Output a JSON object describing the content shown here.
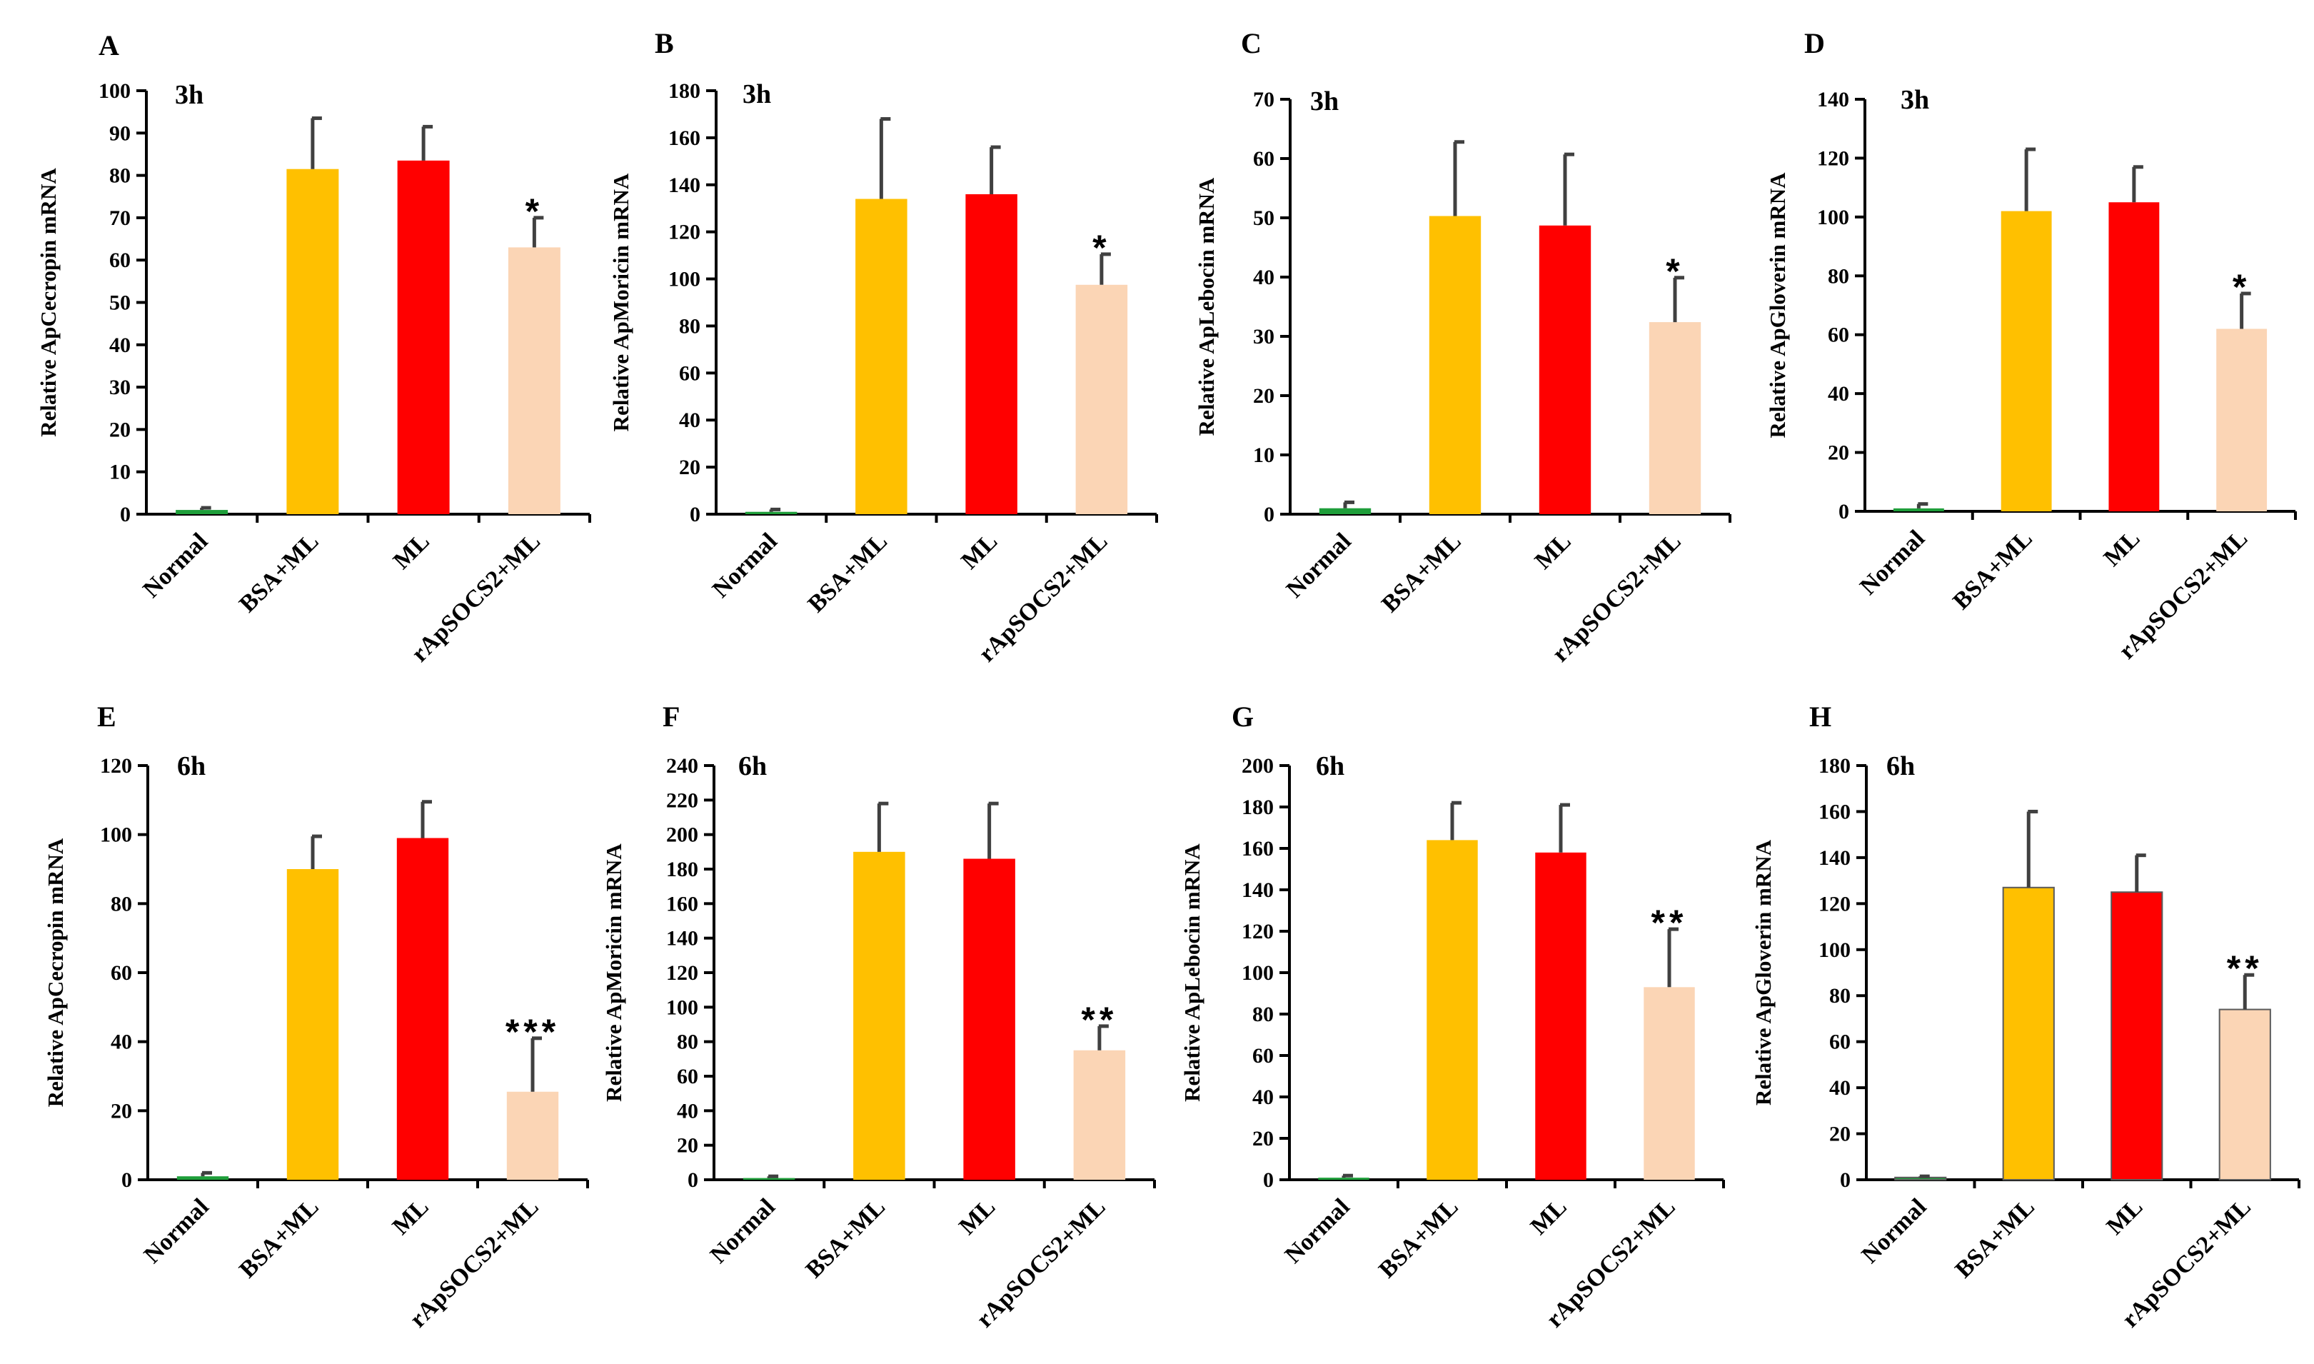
{
  "colors": {
    "Normal": "#1e9e3a",
    "BSA+ML": "#ffc000",
    "ML": "#ff0000",
    "rApSOCS2+ML": "#fbd5b5",
    "errorbar": "#404040",
    "axis": "#000000"
  },
  "chart_data": [
    {
      "panel": "A",
      "type": "bar",
      "time": "3h",
      "ylabel": "Relative ApCecropin  mRNA",
      "categories": [
        "Normal",
        "BSA+ML",
        "ML",
        "rApSOCS2+ML"
      ],
      "values": [
        1,
        81.5,
        83.5,
        63
      ],
      "errors": [
        0.5,
        12,
        8,
        7
      ],
      "significance": [
        "",
        "",
        "",
        "*"
      ],
      "ylim": [
        0,
        100
      ],
      "yticks": [
        0,
        10,
        20,
        30,
        40,
        50,
        60,
        70,
        80,
        90,
        100
      ]
    },
    {
      "panel": "B",
      "type": "bar",
      "time": "3h",
      "ylabel": "Relative ApMoricin  mRNA",
      "categories": [
        "Normal",
        "BSA+ML",
        "ML",
        "rApSOCS2+ML"
      ],
      "values": [
        1,
        134,
        136,
        97.5
      ],
      "errors": [
        1,
        34,
        20,
        13
      ],
      "significance": [
        "",
        "",
        "",
        "*"
      ],
      "ylim": [
        0,
        180
      ],
      "yticks": [
        0,
        20,
        40,
        60,
        80,
        100,
        120,
        140,
        160,
        180
      ]
    },
    {
      "panel": "C",
      "type": "bar",
      "time": "3h",
      "ylabel": "Relative ApLebocin  mRNA",
      "categories": [
        "Normal",
        "BSA+ML",
        "ML",
        "rApSOCS2+ML"
      ],
      "values": [
        1,
        50.3,
        48.7,
        32.4
      ],
      "errors": [
        1,
        12.5,
        12,
        7.5
      ],
      "significance": [
        "",
        "",
        "",
        "*"
      ],
      "ylim": [
        0,
        70
      ],
      "yticks": [
        0,
        10,
        20,
        30,
        40,
        50,
        60,
        70
      ]
    },
    {
      "panel": "D",
      "type": "bar",
      "time": "3h",
      "ylabel": "Relative ApGloverin  mRNA",
      "categories": [
        "Normal",
        "BSA+ML",
        "ML",
        "rApSOCS2+ML"
      ],
      "values": [
        1,
        102,
        105,
        62
      ],
      "errors": [
        1.5,
        21,
        12,
        12
      ],
      "significance": [
        "",
        "",
        "",
        "*"
      ],
      "ylim": [
        0,
        140
      ],
      "yticks": [
        0,
        20,
        40,
        60,
        80,
        100,
        120,
        140
      ]
    },
    {
      "panel": "E",
      "type": "bar",
      "time": "6h",
      "ylabel": "Relative ApCecropin  mRNA",
      "categories": [
        "Normal",
        "BSA+ML",
        "ML",
        "rApSOCS2+ML"
      ],
      "values": [
        1,
        90,
        99,
        25.5
      ],
      "errors": [
        1,
        9.5,
        10.5,
        15.5
      ],
      "significance": [
        "",
        "",
        "",
        "***"
      ],
      "ylim": [
        0,
        120
      ],
      "yticks": [
        0,
        20,
        40,
        60,
        80,
        100,
        120
      ]
    },
    {
      "panel": "F",
      "type": "bar",
      "time": "6h",
      "ylabel": "Relative ApMoricin  mRNA",
      "categories": [
        "Normal",
        "BSA+ML",
        "ML",
        "rApSOCS2+ML"
      ],
      "values": [
        1,
        190,
        186,
        75
      ],
      "errors": [
        1,
        28,
        32,
        14
      ],
      "significance": [
        "",
        "",
        "",
        "**"
      ],
      "ylim": [
        0,
        240
      ],
      "yticks": [
        0,
        20,
        40,
        60,
        80,
        100,
        120,
        140,
        160,
        180,
        200,
        220,
        240
      ]
    },
    {
      "panel": "G",
      "type": "bar",
      "time": "6h",
      "ylabel": "Relative ApLebocin  mRNA",
      "categories": [
        "Normal",
        "BSA+ML",
        "ML",
        "rApSOCS2+ML"
      ],
      "values": [
        1,
        164,
        158,
        93
      ],
      "errors": [
        1,
        18,
        23,
        28
      ],
      "significance": [
        "",
        "",
        "",
        "**"
      ],
      "ylim": [
        0,
        200
      ],
      "yticks": [
        0,
        20,
        40,
        60,
        80,
        100,
        120,
        140,
        160,
        180,
        200
      ]
    },
    {
      "panel": "H",
      "type": "bar",
      "time": "6h",
      "ylabel": "Relative ApGloverin  mRNA",
      "categories": [
        "Normal",
        "BSA+ML",
        "ML",
        "rApSOCS2+ML"
      ],
      "values": [
        1,
        127,
        125,
        74
      ],
      "errors": [
        0.5,
        33,
        16,
        15
      ],
      "significance": [
        "",
        "",
        "",
        "**"
      ],
      "ylim": [
        0,
        180
      ],
      "yticks": [
        0,
        20,
        40,
        60,
        80,
        100,
        120,
        140,
        160,
        180
      ]
    }
  ]
}
